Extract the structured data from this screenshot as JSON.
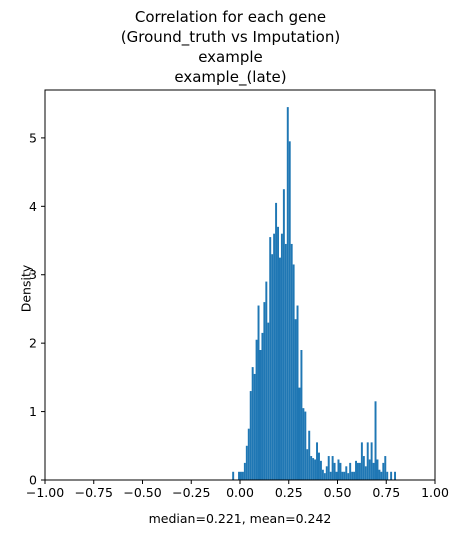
{
  "chart_data": {
    "type": "bar",
    "title_lines": [
      "Correlation for each gene",
      "(Ground_truth vs Imputation)",
      "example",
      "example_(late)"
    ],
    "xlabel": "median=0.221, mean=0.242",
    "ylabel": "Density",
    "xlim": [
      -1.0,
      1.0
    ],
    "ylim": [
      0,
      5.7
    ],
    "xticks": [
      -1.0,
      -0.75,
      -0.5,
      -0.25,
      0.0,
      0.25,
      0.5,
      0.75,
      1.0
    ],
    "xtick_labels": [
      "−1.00",
      "−0.75",
      "−0.50",
      "−0.25",
      "0.00",
      "0.25",
      "0.50",
      "0.75",
      "1.00"
    ],
    "yticks": [
      0,
      1,
      2,
      3,
      4,
      5
    ],
    "ytick_labels": [
      "0",
      "1",
      "2",
      "3",
      "4",
      "5"
    ],
    "grid": false,
    "bar_color": "#1f77b4",
    "bin_width": 0.01,
    "bins": [
      [
        -0.04,
        0.12
      ],
      [
        -0.01,
        0.12
      ],
      [
        0.0,
        0.12
      ],
      [
        0.01,
        0.12
      ],
      [
        0.02,
        0.25
      ],
      [
        0.03,
        0.5
      ],
      [
        0.04,
        0.75
      ],
      [
        0.05,
        1.3
      ],
      [
        0.06,
        1.65
      ],
      [
        0.07,
        1.55
      ],
      [
        0.08,
        2.05
      ],
      [
        0.09,
        2.55
      ],
      [
        0.1,
        1.9
      ],
      [
        0.11,
        2.15
      ],
      [
        0.12,
        2.6
      ],
      [
        0.13,
        2.9
      ],
      [
        0.14,
        2.3
      ],
      [
        0.15,
        3.55
      ],
      [
        0.16,
        3.3
      ],
      [
        0.17,
        3.6
      ],
      [
        0.18,
        4.05
      ],
      [
        0.19,
        3.7
      ],
      [
        0.2,
        3.25
      ],
      [
        0.21,
        3.6
      ],
      [
        0.22,
        4.25
      ],
      [
        0.23,
        3.45
      ],
      [
        0.24,
        5.45
      ],
      [
        0.25,
        4.95
      ],
      [
        0.26,
        3.45
      ],
      [
        0.27,
        3.15
      ],
      [
        0.28,
        2.35
      ],
      [
        0.29,
        2.55
      ],
      [
        0.3,
        1.35
      ],
      [
        0.31,
        1.9
      ],
      [
        0.32,
        1.05
      ],
      [
        0.33,
        1.0
      ],
      [
        0.34,
        0.45
      ],
      [
        0.35,
        0.72
      ],
      [
        0.36,
        0.35
      ],
      [
        0.37,
        0.32
      ],
      [
        0.38,
        0.3
      ],
      [
        0.39,
        0.55
      ],
      [
        0.4,
        0.4
      ],
      [
        0.41,
        0.28
      ],
      [
        0.42,
        0.15
      ],
      [
        0.43,
        0.1
      ],
      [
        0.44,
        0.2
      ],
      [
        0.45,
        0.35
      ],
      [
        0.46,
        0.12
      ],
      [
        0.47,
        0.35
      ],
      [
        0.48,
        0.25
      ],
      [
        0.49,
        0.12
      ],
      [
        0.5,
        0.3
      ],
      [
        0.51,
        0.25
      ],
      [
        0.52,
        0.12
      ],
      [
        0.53,
        0.12
      ],
      [
        0.54,
        0.2
      ],
      [
        0.55,
        0.1
      ],
      [
        0.56,
        0.25
      ],
      [
        0.57,
        0.12
      ],
      [
        0.58,
        0.12
      ],
      [
        0.59,
        0.28
      ],
      [
        0.6,
        0.25
      ],
      [
        0.61,
        0.25
      ],
      [
        0.62,
        0.55
      ],
      [
        0.63,
        0.35
      ],
      [
        0.64,
        0.2
      ],
      [
        0.65,
        0.55
      ],
      [
        0.66,
        0.3
      ],
      [
        0.67,
        0.55
      ],
      [
        0.68,
        0.25
      ],
      [
        0.69,
        1.15
      ],
      [
        0.7,
        0.3
      ],
      [
        0.71,
        0.15
      ],
      [
        0.72,
        0.12
      ],
      [
        0.73,
        0.25
      ],
      [
        0.74,
        0.35
      ],
      [
        0.75,
        0.12
      ],
      [
        0.77,
        0.12
      ],
      [
        0.79,
        0.12
      ]
    ]
  }
}
